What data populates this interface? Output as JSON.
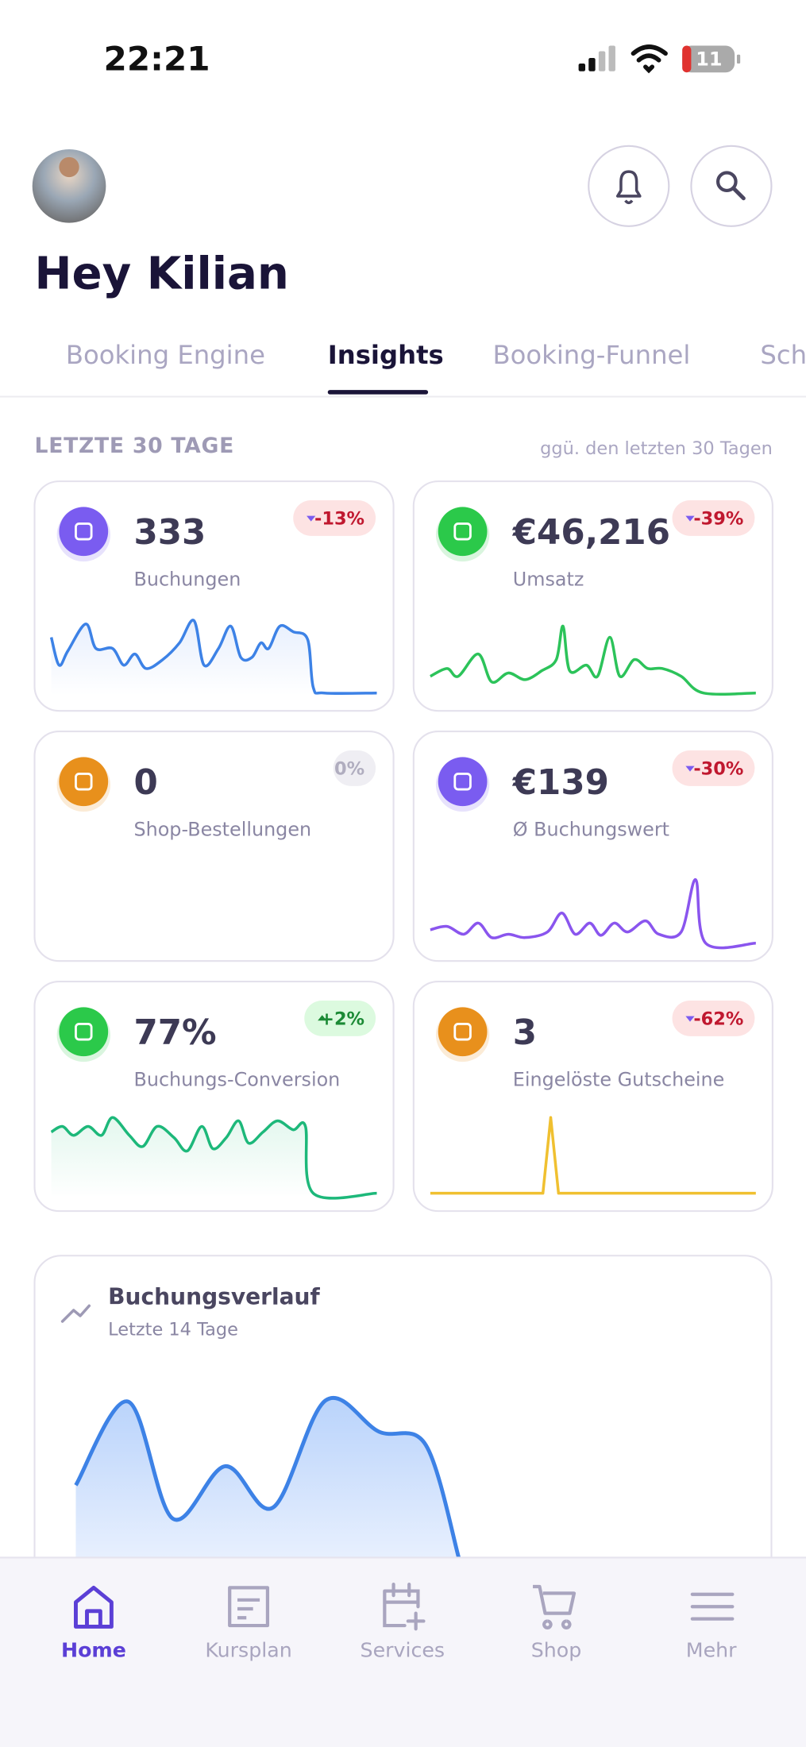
{
  "status": {
    "time": "22:21",
    "battery": "11"
  },
  "header": {
    "greeting": "Hey Kilian"
  },
  "tabs": [
    "Booking Engine",
    "Insights",
    "Booking-Funnel",
    "Sch"
  ],
  "section": {
    "label": "LETZTE 30 TAGE",
    "comparison": "ggü. den letzten 30 Tagen"
  },
  "cards": [
    {
      "value": "333",
      "label": "Buchungen",
      "change": "-13%"
    },
    {
      "value": "€46,216",
      "label": "Umsatz",
      "change": "-39%"
    },
    {
      "value": "0",
      "label": "Shop-Bestellungen",
      "change": "0%"
    },
    {
      "value": "€139",
      "label": "Ø Buchungswert",
      "change": "-30%"
    },
    {
      "value": "77%",
      "label": "Buchungs-Conversion",
      "change": "+2%"
    },
    {
      "value": "3",
      "label": "Eingelöste Gutscheine",
      "change": "-62%"
    }
  ],
  "history": {
    "title": "Buchungsverlauf",
    "subtitle": "Letzte 14 Tage"
  },
  "nav": [
    "Home",
    "Kursplan",
    "Services",
    "Shop",
    "Mehr"
  ]
}
